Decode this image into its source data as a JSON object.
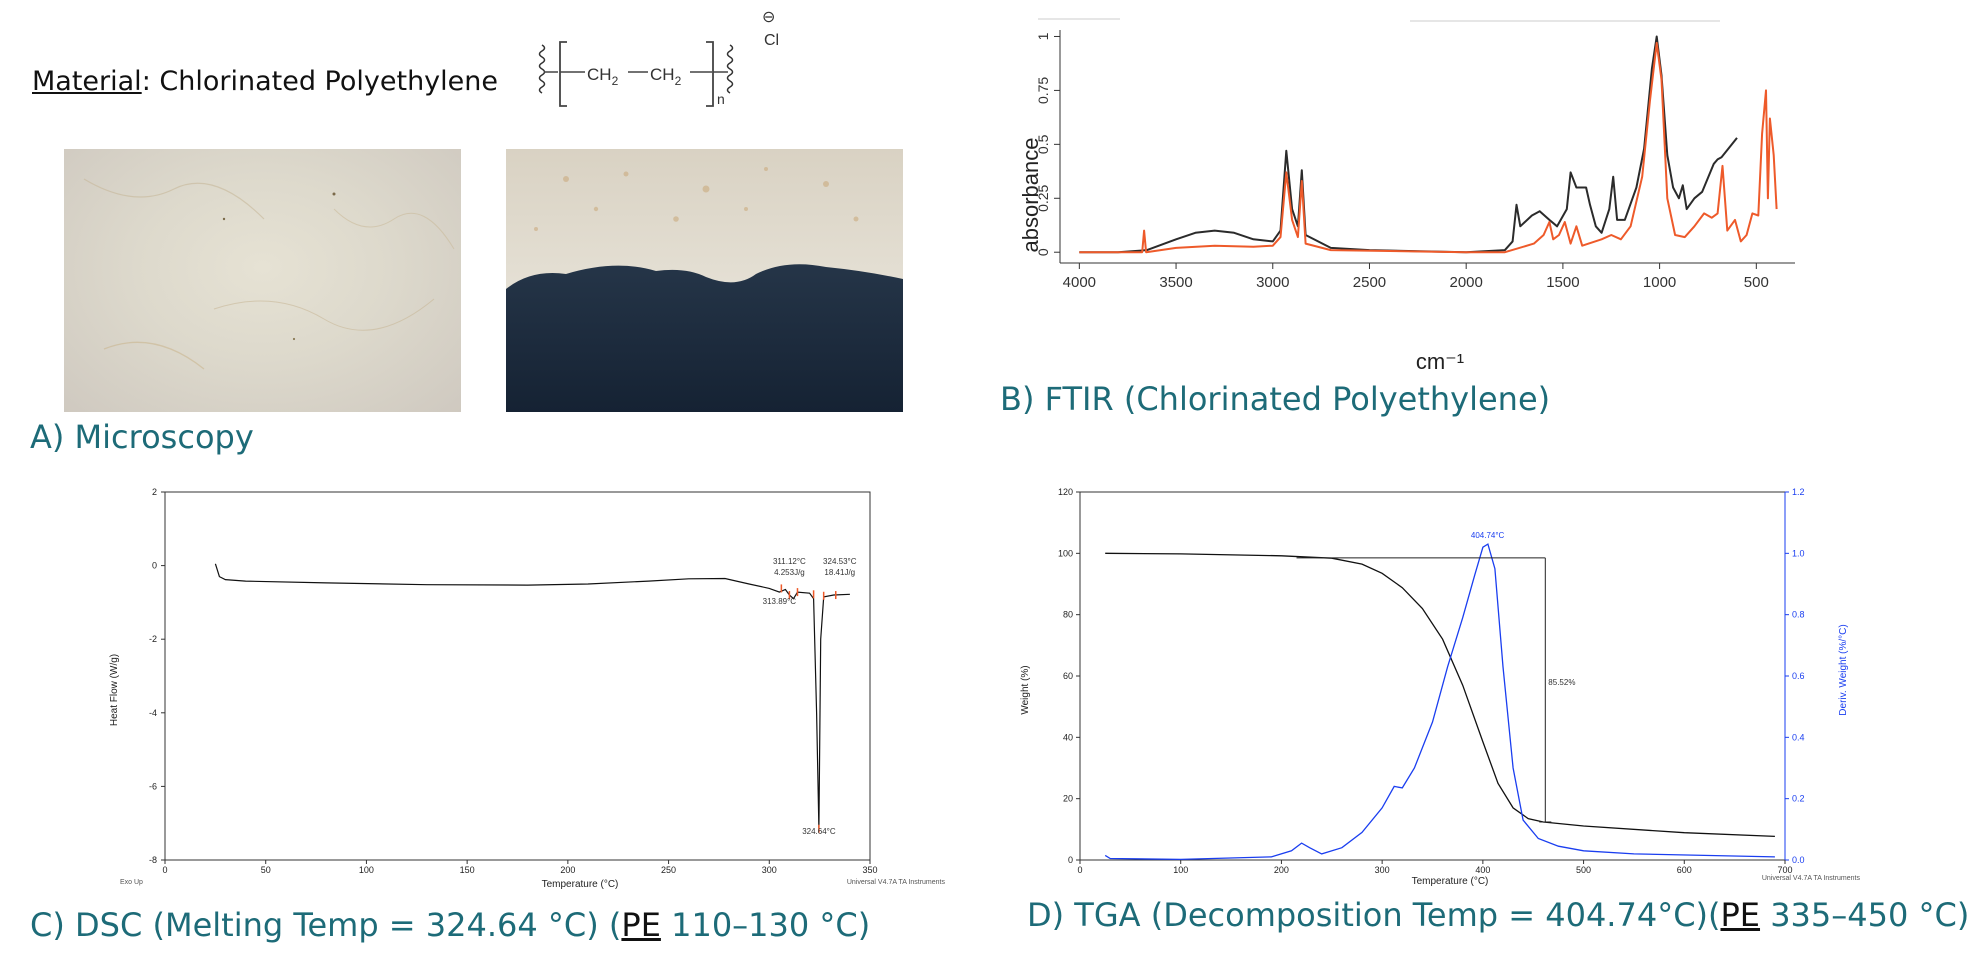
{
  "material": {
    "label": "Material",
    "sep": ":",
    "name": "Chlorinated Polyethylene"
  },
  "structure": {
    "ch2a": "CH",
    "ch2b": "CH",
    "sub": "2",
    "n": "n",
    "minus": "⊖",
    "cl": "Cl"
  },
  "captions": {
    "a": "A) Microscopy",
    "b": "B) FTIR (Chlorinated Polyethylene)",
    "c_pre": "C) DSC (Melting Temp = 324.64 °C) (",
    "c_pe": "PE",
    "c_post": " 110–130 °C)",
    "d_pre": "D) TGA (Decomposition Temp = 404.74°C)(",
    "d_pe": "PE",
    "d_post": " 335–450 °C)"
  },
  "colors": {
    "caption": "#1d6b78",
    "ftir_sample": "#2b2b2b",
    "ftir_reference": "#ee5a2a",
    "tga_weight": "#111111",
    "tga_deriv": "#1a3ef0",
    "dsc_marker": "#ee5a2a"
  },
  "chart_data": [
    {
      "id": "ftir",
      "type": "line",
      "xlabel": "cm⁻¹",
      "ylabel": "absorbance",
      "xlim": [
        4100,
        300
      ],
      "ylim": [
        -0.05,
        1.03
      ],
      "xticks": [
        4000,
        3500,
        3000,
        2500,
        2000,
        1500,
        1000,
        500
      ],
      "yticks": [
        0,
        0.25,
        0.5,
        0.75,
        1
      ],
      "ytick_labels": [
        "0",
        "0.25",
        "0.5",
        "0.75",
        "1"
      ],
      "grid": false,
      "series": [
        {
          "color": "#2b2b2b",
          "points": [
            [
              4000,
              0
            ],
            [
              3800,
              0
            ],
            [
              3650,
              0.01
            ],
            [
              3500,
              0.06
            ],
            [
              3400,
              0.09
            ],
            [
              3300,
              0.1
            ],
            [
              3200,
              0.09
            ],
            [
              3100,
              0.06
            ],
            [
              3000,
              0.05
            ],
            [
              2960,
              0.1
            ],
            [
              2930,
              0.47
            ],
            [
              2900,
              0.2
            ],
            [
              2870,
              0.12
            ],
            [
              2850,
              0.38
            ],
            [
              2830,
              0.08
            ],
            [
              2700,
              0.02
            ],
            [
              2500,
              0.01
            ],
            [
              2000,
              0
            ],
            [
              1800,
              0.01
            ],
            [
              1760,
              0.05
            ],
            [
              1740,
              0.22
            ],
            [
              1720,
              0.12
            ],
            [
              1660,
              0.17
            ],
            [
              1620,
              0.19
            ],
            [
              1570,
              0.15
            ],
            [
              1530,
              0.12
            ],
            [
              1480,
              0.2
            ],
            [
              1460,
              0.37
            ],
            [
              1430,
              0.3
            ],
            [
              1380,
              0.3
            ],
            [
              1360,
              0.22
            ],
            [
              1330,
              0.12
            ],
            [
              1300,
              0.09
            ],
            [
              1260,
              0.2
            ],
            [
              1240,
              0.35
            ],
            [
              1220,
              0.15
            ],
            [
              1180,
              0.15
            ],
            [
              1120,
              0.3
            ],
            [
              1080,
              0.48
            ],
            [
              1040,
              0.85
            ],
            [
              1015,
              1.0
            ],
            [
              990,
              0.82
            ],
            [
              960,
              0.45
            ],
            [
              930,
              0.3
            ],
            [
              900,
              0.25
            ],
            [
              880,
              0.31
            ],
            [
              860,
              0.2
            ],
            [
              820,
              0.25
            ],
            [
              780,
              0.28
            ],
            [
              720,
              0.41
            ],
            [
              700,
              0.43
            ],
            [
              680,
              0.44
            ],
            [
              600,
              0.53
            ]
          ]
        },
        {
          "color": "#ee5a2a",
          "points": [
            [
              4000,
              0
            ],
            [
              3700,
              0
            ],
            [
              3675,
              0.0
            ],
            [
              3665,
              0.1
            ],
            [
              3655,
              0.0
            ],
            [
              3500,
              0.02
            ],
            [
              3300,
              0.03
            ],
            [
              3100,
              0.025
            ],
            [
              3000,
              0.03
            ],
            [
              2960,
              0.07
            ],
            [
              2930,
              0.37
            ],
            [
              2900,
              0.15
            ],
            [
              2870,
              0.07
            ],
            [
              2850,
              0.33
            ],
            [
              2830,
              0.04
            ],
            [
              2700,
              0.01
            ],
            [
              2000,
              0
            ],
            [
              1800,
              0
            ],
            [
              1650,
              0.04
            ],
            [
              1600,
              0.08
            ],
            [
              1570,
              0.14
            ],
            [
              1550,
              0.06
            ],
            [
              1520,
              0.08
            ],
            [
              1490,
              0.14
            ],
            [
              1460,
              0.04
            ],
            [
              1430,
              0.12
            ],
            [
              1400,
              0.03
            ],
            [
              1300,
              0.06
            ],
            [
              1250,
              0.08
            ],
            [
              1200,
              0.06
            ],
            [
              1150,
              0.12
            ],
            [
              1090,
              0.35
            ],
            [
              1050,
              0.7
            ],
            [
              1015,
              0.97
            ],
            [
              990,
              0.8
            ],
            [
              960,
              0.25
            ],
            [
              920,
              0.08
            ],
            [
              870,
              0.07
            ],
            [
              820,
              0.12
            ],
            [
              770,
              0.18
            ],
            [
              730,
              0.16
            ],
            [
              700,
              0.18
            ],
            [
              675,
              0.4
            ],
            [
              650,
              0.1
            ],
            [
              610,
              0.15
            ],
            [
              580,
              0.05
            ],
            [
              550,
              0.08
            ],
            [
              520,
              0.18
            ],
            [
              490,
              0.17
            ],
            [
              470,
              0.55
            ],
            [
              450,
              0.75
            ],
            [
              440,
              0.25
            ],
            [
              430,
              0.62
            ],
            [
              410,
              0.45
            ],
            [
              395,
              0.2
            ]
          ]
        }
      ]
    },
    {
      "id": "dsc",
      "type": "line",
      "xlabel": "Temperature (°C)",
      "ylabel": "Heat Flow (W/g)",
      "xlim": [
        0,
        350
      ],
      "ylim": [
        -8,
        2
      ],
      "xticks": [
        0,
        50,
        100,
        150,
        200,
        250,
        300,
        350
      ],
      "yticks": [
        -8,
        -6,
        -4,
        -2,
        0,
        2
      ],
      "grid": false,
      "series": [
        {
          "color": "#111111",
          "points": [
            [
              25,
              0.05
            ],
            [
              27,
              -0.3
            ],
            [
              30,
              -0.38
            ],
            [
              40,
              -0.42
            ],
            [
              80,
              -0.47
            ],
            [
              130,
              -0.52
            ],
            [
              180,
              -0.53
            ],
            [
              210,
              -0.5
            ],
            [
              240,
              -0.42
            ],
            [
              260,
              -0.36
            ],
            [
              278,
              -0.35
            ],
            [
              290,
              -0.5
            ],
            [
              300,
              -0.62
            ],
            [
              305,
              -0.72
            ],
            [
              308,
              -0.65
            ],
            [
              310,
              -0.8
            ],
            [
              312,
              -0.9
            ],
            [
              314,
              -0.72
            ],
            [
              320,
              -0.75
            ],
            [
              322,
              -0.9
            ],
            [
              323.5,
              -4
            ],
            [
              324.64,
              -7.15
            ],
            [
              325.5,
              -2
            ],
            [
              327,
              -0.85
            ],
            [
              332,
              -0.8
            ],
            [
              340,
              -0.78
            ]
          ]
        }
      ],
      "annotations": [
        {
          "text": "311.12°C",
          "x": 310,
          "y": 0.05
        },
        {
          "text": "4.253J/g",
          "x": 310,
          "y": -0.25
        },
        {
          "text": "324.53°C",
          "x": 335,
          "y": 0.05
        },
        {
          "text": "18.41J/g",
          "x": 335,
          "y": -0.25
        },
        {
          "text": "313.89°C",
          "x": 305,
          "y": -1.05
        },
        {
          "text": "324.64°C",
          "x": 324.64,
          "y": -7.3
        }
      ],
      "footer_left": "Exo Up",
      "footer_right": "Universal V4.7A TA Instruments"
    },
    {
      "id": "tga",
      "type": "line",
      "xlabel": "Temperature (°C)",
      "ylabel": "Weight (%)",
      "y2label": "Deriv. Weight (%/°C)",
      "xlim": [
        0,
        700
      ],
      "ylim": [
        0,
        120
      ],
      "y2lim": [
        0,
        1.2
      ],
      "xticks": [
        0,
        100,
        200,
        300,
        400,
        500,
        600,
        700
      ],
      "yticks": [
        0,
        20,
        40,
        60,
        80,
        100,
        120
      ],
      "y2ticks": [
        0,
        0.2,
        0.4,
        0.6,
        0.8,
        1.0,
        1.2
      ],
      "y2tick_labels": [
        "0.0",
        "0.2",
        "0.4",
        "0.6",
        "0.8",
        "1.0",
        "1.2"
      ],
      "grid": false,
      "series": [
        {
          "axis": "left",
          "color": "#111111",
          "points": [
            [
              25,
              100
            ],
            [
              100,
              99.8
            ],
            [
              200,
              99.2
            ],
            [
              250,
              98.4
            ],
            [
              280,
              96.5
            ],
            [
              300,
              93.5
            ],
            [
              320,
              88.8
            ],
            [
              340,
              82
            ],
            [
              360,
              72
            ],
            [
              380,
              57
            ],
            [
              400,
              38.5
            ],
            [
              415,
              25
            ],
            [
              430,
              17
            ],
            [
              445,
              13.5
            ],
            [
              460,
              12.4
            ],
            [
              500,
              11.1
            ],
            [
              600,
              8.9
            ],
            [
              690,
              7.7
            ]
          ]
        },
        {
          "axis": "right",
          "color": "#1a3ef0",
          "points": [
            [
              25,
              0.015
            ],
            [
              30,
              0.005
            ],
            [
              100,
              0.002
            ],
            [
              190,
              0.01
            ],
            [
              210,
              0.03
            ],
            [
              220,
              0.055
            ],
            [
              228,
              0.04
            ],
            [
              240,
              0.02
            ],
            [
              260,
              0.04
            ],
            [
              280,
              0.09
            ],
            [
              300,
              0.17
            ],
            [
              312,
              0.24
            ],
            [
              320,
              0.235
            ],
            [
              332,
              0.3
            ],
            [
              350,
              0.45
            ],
            [
              365,
              0.63
            ],
            [
              380,
              0.79
            ],
            [
              392,
              0.93
            ],
            [
              400,
              1.02
            ],
            [
              405,
              1.03
            ],
            [
              412,
              0.95
            ],
            [
              420,
              0.63
            ],
            [
              430,
              0.3
            ],
            [
              440,
              0.13
            ],
            [
              455,
              0.07
            ],
            [
              475,
              0.045
            ],
            [
              500,
              0.03
            ],
            [
              550,
              0.02
            ],
            [
              690,
              0.01
            ]
          ]
        }
      ],
      "annotations": [
        {
          "text": "404.74°C",
          "x": 404.74,
          "y2": 1.05
        },
        {
          "text": "85.52%",
          "x": 462,
          "y": 57
        }
      ],
      "measure": {
        "x": 462,
        "from": 98.5,
        "to": 12.4,
        "xstart": 215
      },
      "footer_right": "Universal V4.7A TA Instruments"
    }
  ]
}
